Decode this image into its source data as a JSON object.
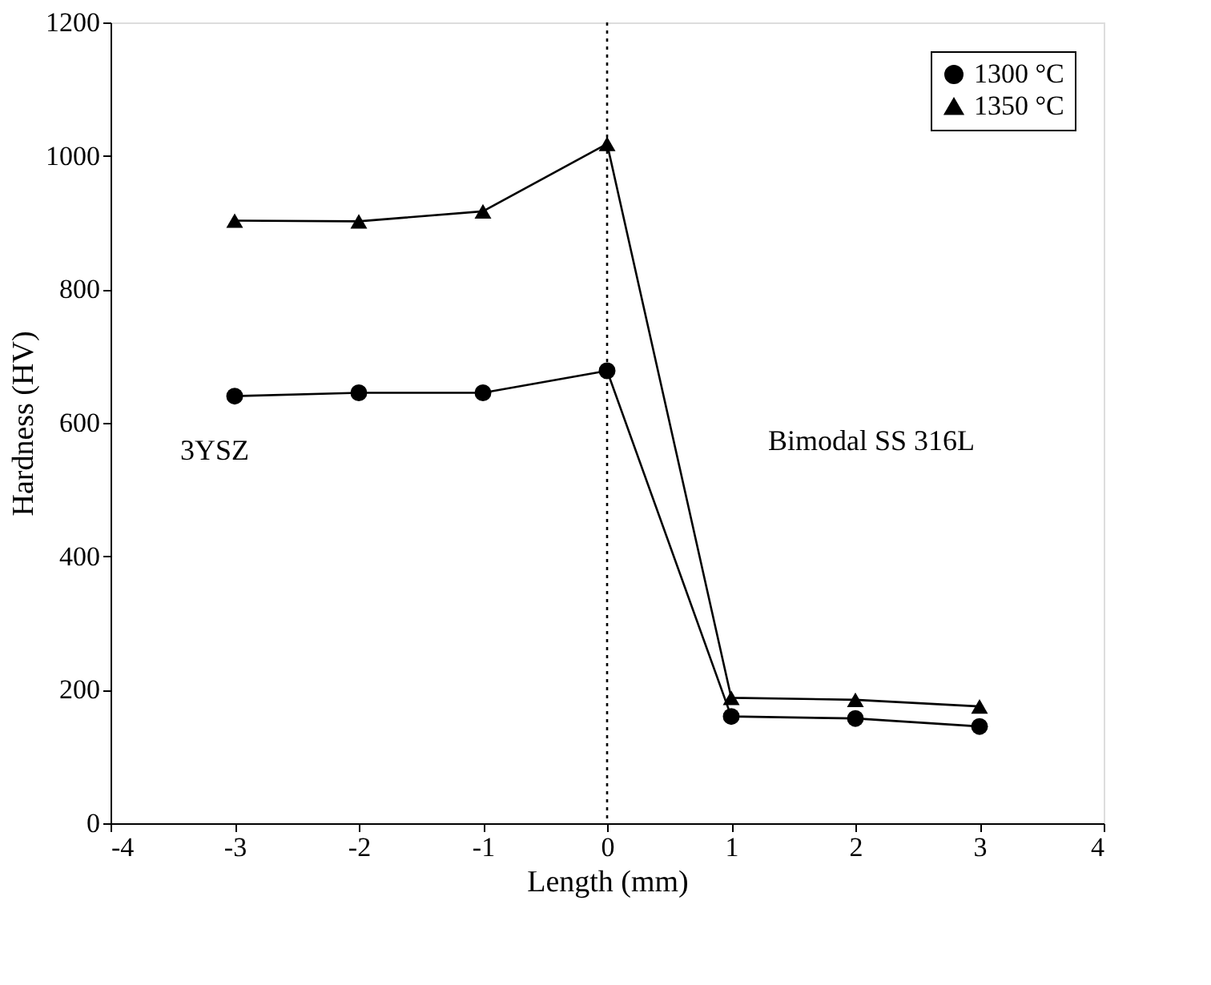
{
  "chart_data": {
    "type": "line",
    "xlabel": "Length (mm)",
    "ylabel": "Hardness (HV)",
    "x": [
      -3,
      -2,
      -1,
      0,
      1,
      2,
      3
    ],
    "series": [
      {
        "name": "1300 °C",
        "color": "#000000",
        "marker": "circle",
        "values": [
          640,
          645,
          645,
          678,
          160,
          157,
          145
        ]
      },
      {
        "name": "1350 °C",
        "color": "#000000",
        "marker": "triangle",
        "values": [
          903,
          902,
          917,
          1018,
          188,
          185,
          175
        ]
      }
    ],
    "xlim": [
      -4,
      4
    ],
    "xticks": [
      -4,
      -3,
      -2,
      -1,
      0,
      1,
      2,
      3,
      4
    ],
    "ylim": [
      0,
      1200
    ],
    "yticks": [
      0,
      200,
      400,
      600,
      800,
      1000,
      1200
    ],
    "ref_lines": [
      {
        "axis": "x",
        "value": 0,
        "color": "#000000",
        "line_style": "dotted"
      }
    ],
    "annotations": [
      "3YSZ",
      "Bimodal SS 316L"
    ],
    "grid": false,
    "legend": "top right",
    "line_style": "solid"
  }
}
